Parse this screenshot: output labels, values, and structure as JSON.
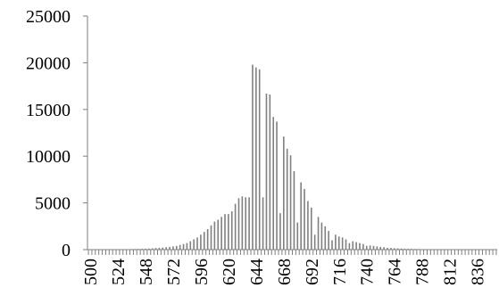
{
  "chart_data": {
    "type": "bar",
    "title": "",
    "xlabel": "",
    "ylabel": "",
    "ylim": [
      0,
      25000
    ],
    "y_ticks": [
      0,
      5000,
      10000,
      15000,
      20000,
      25000
    ],
    "x_tick_labels": [
      "500",
      "524",
      "548",
      "572",
      "596",
      "620",
      "644",
      "668",
      "692",
      "716",
      "740",
      "764",
      "788",
      "812",
      "836"
    ],
    "x_start": 500,
    "x_step": 3,
    "bar_color": "#808080",
    "grid": false,
    "legend": "none",
    "categories": [
      500,
      503,
      506,
      509,
      512,
      515,
      518,
      521,
      524,
      527,
      530,
      533,
      536,
      539,
      542,
      545,
      548,
      551,
      554,
      557,
      560,
      563,
      566,
      569,
      572,
      575,
      578,
      581,
      584,
      587,
      590,
      593,
      596,
      599,
      602,
      605,
      608,
      611,
      614,
      617,
      620,
      623,
      626,
      629,
      632,
      635,
      638,
      641,
      644,
      647,
      650,
      653,
      656,
      659,
      662,
      665,
      668,
      671,
      674,
      677,
      680,
      683,
      686,
      689,
      692,
      695,
      698,
      701,
      704,
      707,
      710,
      713,
      716,
      719,
      722,
      725,
      728,
      731,
      734,
      737,
      740,
      743,
      746,
      749,
      752,
      755,
      758,
      761,
      764,
      767,
      770,
      773,
      776,
      779,
      782,
      785,
      788,
      791,
      794,
      797,
      800,
      803,
      806,
      809,
      812,
      815,
      818,
      821,
      824,
      827,
      830,
      833,
      836,
      839,
      842,
      845,
      848,
      851
    ],
    "values": [
      10,
      12,
      12,
      15,
      18,
      20,
      25,
      30,
      35,
      40,
      45,
      50,
      60,
      70,
      80,
      90,
      100,
      120,
      140,
      170,
      200,
      220,
      260,
      300,
      350,
      400,
      500,
      600,
      700,
      900,
      1100,
      1300,
      1600,
      1900,
      2200,
      2600,
      3000,
      3200,
      3500,
      3800,
      3800,
      4100,
      4900,
      5500,
      5700,
      5600,
      5600,
      19800,
      19500,
      19300,
      5600,
      16700,
      16600,
      14200,
      13700,
      3900,
      12100,
      10800,
      10100,
      8400,
      2900,
      7200,
      6500,
      5200,
      4500,
      1600,
      3500,
      2900,
      2500,
      2000,
      1000,
      1600,
      1400,
      1300,
      1100,
      700,
      900,
      800,
      700,
      600,
      400,
      450,
      400,
      350,
      300,
      250,
      200,
      180,
      160,
      140,
      120,
      100,
      90,
      80,
      70,
      60,
      50,
      40,
      35,
      30,
      25,
      20,
      18,
      16,
      14,
      12,
      10,
      10,
      8,
      8,
      6,
      6,
      5,
      5,
      4,
      4,
      3,
      3
    ]
  }
}
